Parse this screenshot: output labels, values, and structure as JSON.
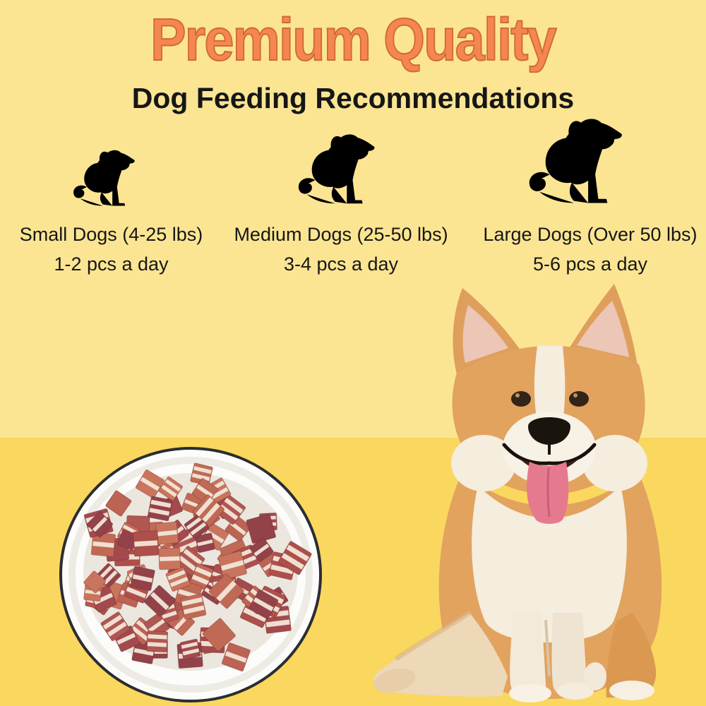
{
  "header": {
    "title": "Premium Quality",
    "subtitle": "Dog Feeding Recommendations"
  },
  "feeding": {
    "columns": [
      {
        "icon": "small-dog-icon",
        "size_label": "Small Dogs (4-25 lbs)",
        "daily_amount": "1-2 pcs a day"
      },
      {
        "icon": "medium-dog-icon",
        "size_label": "Medium Dogs (25-50 lbs)",
        "daily_amount": "3-4 pcs a day"
      },
      {
        "icon": "large-dog-icon",
        "size_label": "Large Dogs (Over 50 lbs)",
        "daily_amount": "5-6 pcs a day"
      }
    ]
  },
  "colors": {
    "title_orange": "#F6864F",
    "title_outline": "#CE6A36",
    "icon_outline_orange": "#EF7B4D",
    "background_top": "#FBE593",
    "background_bottom": "#FAD75E",
    "text": "#161616",
    "plate_rim": "#2B2D31",
    "plate_white": "#FCFCFB",
    "treat_stripe": "#F2E7D8",
    "treat_palette": [
      "#A34A4C",
      "#B05752",
      "#BC6353",
      "#C9745C",
      "#94424A",
      "#AD4F4B",
      "#C06A55"
    ]
  }
}
